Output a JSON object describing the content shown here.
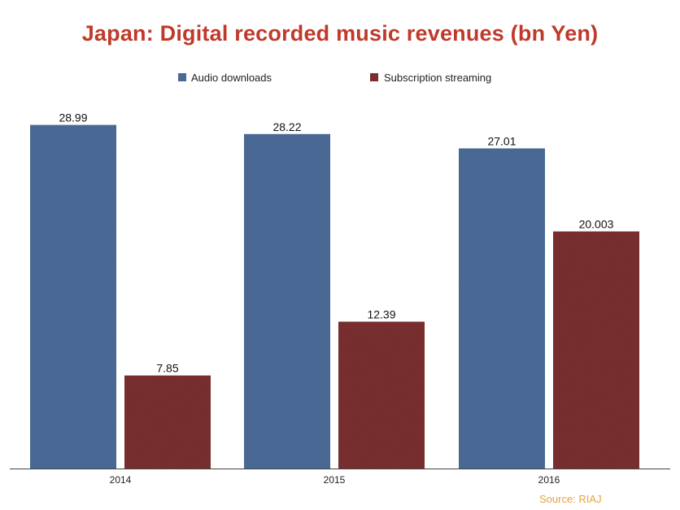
{
  "chart_data": {
    "type": "bar",
    "title": "Japan: Digital recorded music revenues (bn Yen)",
    "categories": [
      "2014",
      "2015",
      "2016"
    ],
    "series": [
      {
        "name": "Audio downloads",
        "values": [
          28.99,
          28.22,
          27.01
        ],
        "labels": [
          "28.99",
          "28.22",
          "27.01"
        ],
        "color": "#4a6a96"
      },
      {
        "name": "Subscription streaming",
        "values": [
          7.85,
          12.39,
          20.003
        ],
        "labels": [
          "7.85",
          "12.39",
          "20.003"
        ],
        "color": "#7a2e2e"
      }
    ],
    "ylim": [
      0,
      31.5
    ],
    "grid": false,
    "legend": "top-center",
    "xlabel": "",
    "ylabel": ""
  },
  "source": "Source: RIAJ"
}
